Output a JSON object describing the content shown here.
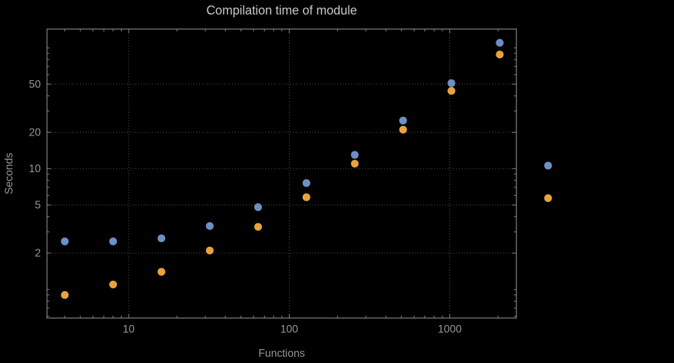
{
  "theme": {
    "background": "#000000",
    "frame": "#8a8a8a",
    "grid": "#5e5e5e",
    "title_color": "#c9c9c9",
    "axis_label_color": "#969696",
    "tick_label_color": "#969696"
  },
  "chart_data": {
    "type": "scatter",
    "title": "Compilation time of module",
    "xlabel": "Functions",
    "ylabel": "Seconds",
    "x_scale": "log",
    "y_scale": "log",
    "xlim": [
      3.1,
      2600
    ],
    "ylim": [
      0.58,
      143
    ],
    "grid": true,
    "legend": "none",
    "x_ticks": [
      {
        "value": 10,
        "label": "10"
      },
      {
        "value": 100,
        "label": "100"
      },
      {
        "value": 1000,
        "label": "1000"
      }
    ],
    "y_ticks": [
      {
        "value": 2,
        "label": "2"
      },
      {
        "value": 5,
        "label": "5"
      },
      {
        "value": 10,
        "label": "10"
      },
      {
        "value": 20,
        "label": "20"
      },
      {
        "value": 50,
        "label": "50"
      }
    ],
    "series": [
      {
        "name": "series-1-blue",
        "color": "#6d8fc4",
        "marker": "circle",
        "points": [
          {
            "x": 4,
            "y": 2.5
          },
          {
            "x": 8,
            "y": 2.5
          },
          {
            "x": 16,
            "y": 2.65
          },
          {
            "x": 32,
            "y": 3.35
          },
          {
            "x": 64,
            "y": 4.8
          },
          {
            "x": 128,
            "y": 7.6
          },
          {
            "x": 256,
            "y": 13
          },
          {
            "x": 512,
            "y": 25
          },
          {
            "x": 1024,
            "y": 51
          },
          {
            "x": 2048,
            "y": 110
          },
          {
            "x": 4096,
            "y": 10.6
          }
        ]
      },
      {
        "name": "series-2-orange",
        "color": "#e8a33d",
        "marker": "circle",
        "points": [
          {
            "x": 4,
            "y": 0.9
          },
          {
            "x": 8,
            "y": 1.1
          },
          {
            "x": 16,
            "y": 1.4
          },
          {
            "x": 32,
            "y": 2.1
          },
          {
            "x": 64,
            "y": 3.3
          },
          {
            "x": 128,
            "y": 5.8
          },
          {
            "x": 256,
            "y": 11
          },
          {
            "x": 512,
            "y": 21
          },
          {
            "x": 1024,
            "y": 44
          },
          {
            "x": 2048,
            "y": 88
          },
          {
            "x": 4096,
            "y": 5.7
          }
        ]
      }
    ]
  }
}
